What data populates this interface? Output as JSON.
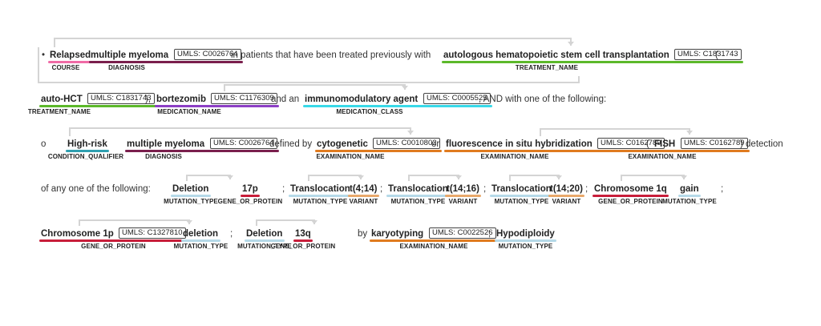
{
  "colors": {
    "COURSE": "#f06ba6",
    "DIAGNOSIS": "#7a1f4d",
    "TREATMENT_NAME": "#5cb82a",
    "MEDICATION_NAME": "#8c3fc5",
    "MEDICATION_CLASS": "#39d9e8",
    "CONDITION_QUALIFIER": "#2f9fb0",
    "EXAMINATION_NAME": "#e07b1f",
    "MUTATION_TYPE": "#b5d9e8",
    "GENE_OR_PROTEIN": "#c81e3a",
    "VARIANT": "#e8a86b",
    "arc": "#d4d4d4"
  },
  "lines": [
    {
      "tokens": [
        {
          "t": "txt",
          "text": "•"
        },
        {
          "t": "ent",
          "text": "Relapsed",
          "label": "COURSE"
        },
        {
          "t": "ent",
          "text": "multiple myeloma",
          "label": "DIAGNOSIS",
          "cui": "UMLS: C0026764"
        },
        {
          "t": "txt",
          "text": "in patients that have been treated previously with"
        },
        {
          "t": "ent",
          "text": "autologous hematopoietic stem cell transplantation",
          "label": "TREATMENT_NAME",
          "cui": "UMLS: C1831743"
        },
        {
          "t": "txt",
          "text": "("
        }
      ]
    },
    {
      "tokens": [
        {
          "t": "ent",
          "text": "auto-HCT",
          "label": "TREATMENT_NAME",
          "cui": "UMLS: C1831743"
        },
        {
          "t": "txt",
          "text": "),"
        },
        {
          "t": "ent",
          "text": "bortezomib",
          "label": "MEDICATION_NAME",
          "cui": "UMLS: C1176309"
        },
        {
          "t": "txt",
          "text": "and an"
        },
        {
          "t": "ent",
          "text": "immunomodulatory agent",
          "label": "MEDICATION_CLASS",
          "cui": "UMLS: C0005525"
        },
        {
          "t": "txt",
          "text": ", AND with one of the following:"
        }
      ]
    },
    {
      "tokens": [
        {
          "t": "txt",
          "text": "o"
        },
        {
          "t": "ent",
          "text": "High-risk",
          "label": "CONDITION_QUALIFIER"
        },
        {
          "t": "ent",
          "text": "multiple myeloma",
          "label": "DIAGNOSIS",
          "cui": "UMLS: C0026764"
        },
        {
          "t": "txt",
          "text": "defined by"
        },
        {
          "t": "ent",
          "text": "cytogenetic",
          "label": "EXAMINATION_NAME",
          "cui": "UMLS: C0010802"
        },
        {
          "t": "txt",
          "text": "or"
        },
        {
          "t": "ent",
          "text": "fluorescence in situ hybridization",
          "label": "EXAMINATION_NAME",
          "cui": "UMLS: C0162789"
        },
        {
          "t": "txt",
          "text": "("
        },
        {
          "t": "ent",
          "text": "FISH",
          "label": "EXAMINATION_NAME",
          "cui": "UMLS: C0162789"
        },
        {
          "t": "txt",
          "text": ") detection"
        }
      ]
    },
    {
      "tokens": [
        {
          "t": "txt",
          "text": "of any one of the following:"
        },
        {
          "t": "ent",
          "text": "Deletion",
          "label": "MUTATION_TYPE"
        },
        {
          "t": "ent",
          "text": "17p",
          "label": "GENE_OR_PROTEIN"
        },
        {
          "t": "txt",
          "text": ";"
        },
        {
          "t": "ent",
          "text": "Translocation",
          "label": "MUTATION_TYPE"
        },
        {
          "t": "ent",
          "text": "t(4;14)",
          "label": "VARIANT"
        },
        {
          "t": "txt",
          "text": ";"
        },
        {
          "t": "ent",
          "text": "Translocation",
          "label": "MUTATION_TYPE"
        },
        {
          "t": "ent",
          "text": "t(14;16)",
          "label": "VARIANT"
        },
        {
          "t": "txt",
          "text": ";"
        },
        {
          "t": "ent",
          "text": "Translocation",
          "label": "MUTATION_TYPE"
        },
        {
          "t": "ent",
          "text": "t(14;20)",
          "label": "VARIANT"
        },
        {
          "t": "txt",
          "text": ";"
        },
        {
          "t": "ent",
          "text": "Chromosome 1q",
          "label": "GENE_OR_PROTEIN"
        },
        {
          "t": "ent",
          "text": "gain",
          "label": "MUTATION_TYPE"
        },
        {
          "t": "txt",
          "text": ";"
        }
      ]
    },
    {
      "tokens": [
        {
          "t": "ent",
          "text": "Chromosome 1p",
          "label": "GENE_OR_PROTEIN",
          "cui": "UMLS: C1327810"
        },
        {
          "t": "ent",
          "text": "deletion",
          "label": "MUTATION_TYPE"
        },
        {
          "t": "txt",
          "text": ";"
        },
        {
          "t": "ent",
          "text": "Deletion",
          "label": "MUTATION_TYPE"
        },
        {
          "t": "ent",
          "text": "13q",
          "label": "GENE_OR_PROTEIN"
        },
        {
          "t": "txt",
          "text": "by"
        },
        {
          "t": "ent",
          "text": "karyotyping",
          "label": "EXAMINATION_NAME",
          "cui": "UMLS: C0022526"
        },
        {
          "t": "txt",
          "text": ";"
        },
        {
          "t": "ent",
          "text": "Hypodiploidy",
          "label": "MUTATION_TYPE"
        }
      ]
    }
  ]
}
